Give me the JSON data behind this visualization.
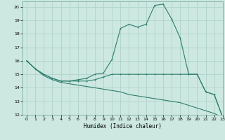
{
  "title": "",
  "xlabel": "Humidex (Indice chaleur)",
  "xlim": [
    -0.5,
    23
  ],
  "ylim": [
    12,
    20.4
  ],
  "xticks": [
    0,
    1,
    2,
    3,
    4,
    5,
    6,
    7,
    8,
    9,
    10,
    11,
    12,
    13,
    14,
    15,
    16,
    17,
    18,
    19,
    20,
    21,
    22,
    23
  ],
  "yticks": [
    12,
    13,
    14,
    15,
    16,
    17,
    18,
    19,
    20
  ],
  "bg_color": "#cce8e0",
  "line_color": "#2e7d6e",
  "grid_color": "#aacfc7",
  "line1_x": [
    0,
    1,
    2,
    3,
    4,
    5,
    6,
    7,
    8,
    9,
    10,
    11,
    12,
    13,
    14,
    15,
    16,
    17,
    18,
    19,
    20,
    21,
    22,
    23
  ],
  "line1_y": [
    16.0,
    15.4,
    15.0,
    14.7,
    14.5,
    14.5,
    14.6,
    14.7,
    15.0,
    15.1,
    16.1,
    18.4,
    18.7,
    18.5,
    18.7,
    20.1,
    20.2,
    19.1,
    17.7,
    15.0,
    15.0,
    13.7,
    13.5,
    11.8
  ],
  "line2_x": [
    0,
    1,
    2,
    3,
    4,
    5,
    6,
    7,
    8,
    9,
    10,
    11,
    12,
    13,
    14,
    15,
    16,
    17,
    18,
    19,
    20,
    21,
    22,
    23
  ],
  "line2_y": [
    16.0,
    15.4,
    15.0,
    14.7,
    14.5,
    14.5,
    14.5,
    14.5,
    14.6,
    14.8,
    15.0,
    15.0,
    15.0,
    15.0,
    15.0,
    15.0,
    15.0,
    15.0,
    15.0,
    15.0,
    15.0,
    13.7,
    13.5,
    11.8
  ],
  "line3_x": [
    0,
    1,
    2,
    3,
    4,
    5,
    6,
    7,
    8,
    9,
    10,
    11,
    12,
    13,
    14,
    15,
    16,
    17,
    18,
    19,
    20,
    21,
    22,
    23
  ],
  "line3_y": [
    16.0,
    15.4,
    14.9,
    14.6,
    14.4,
    14.3,
    14.2,
    14.1,
    14.0,
    13.9,
    13.8,
    13.7,
    13.5,
    13.4,
    13.3,
    13.2,
    13.1,
    13.0,
    12.9,
    12.7,
    12.5,
    12.3,
    12.1,
    11.8
  ]
}
